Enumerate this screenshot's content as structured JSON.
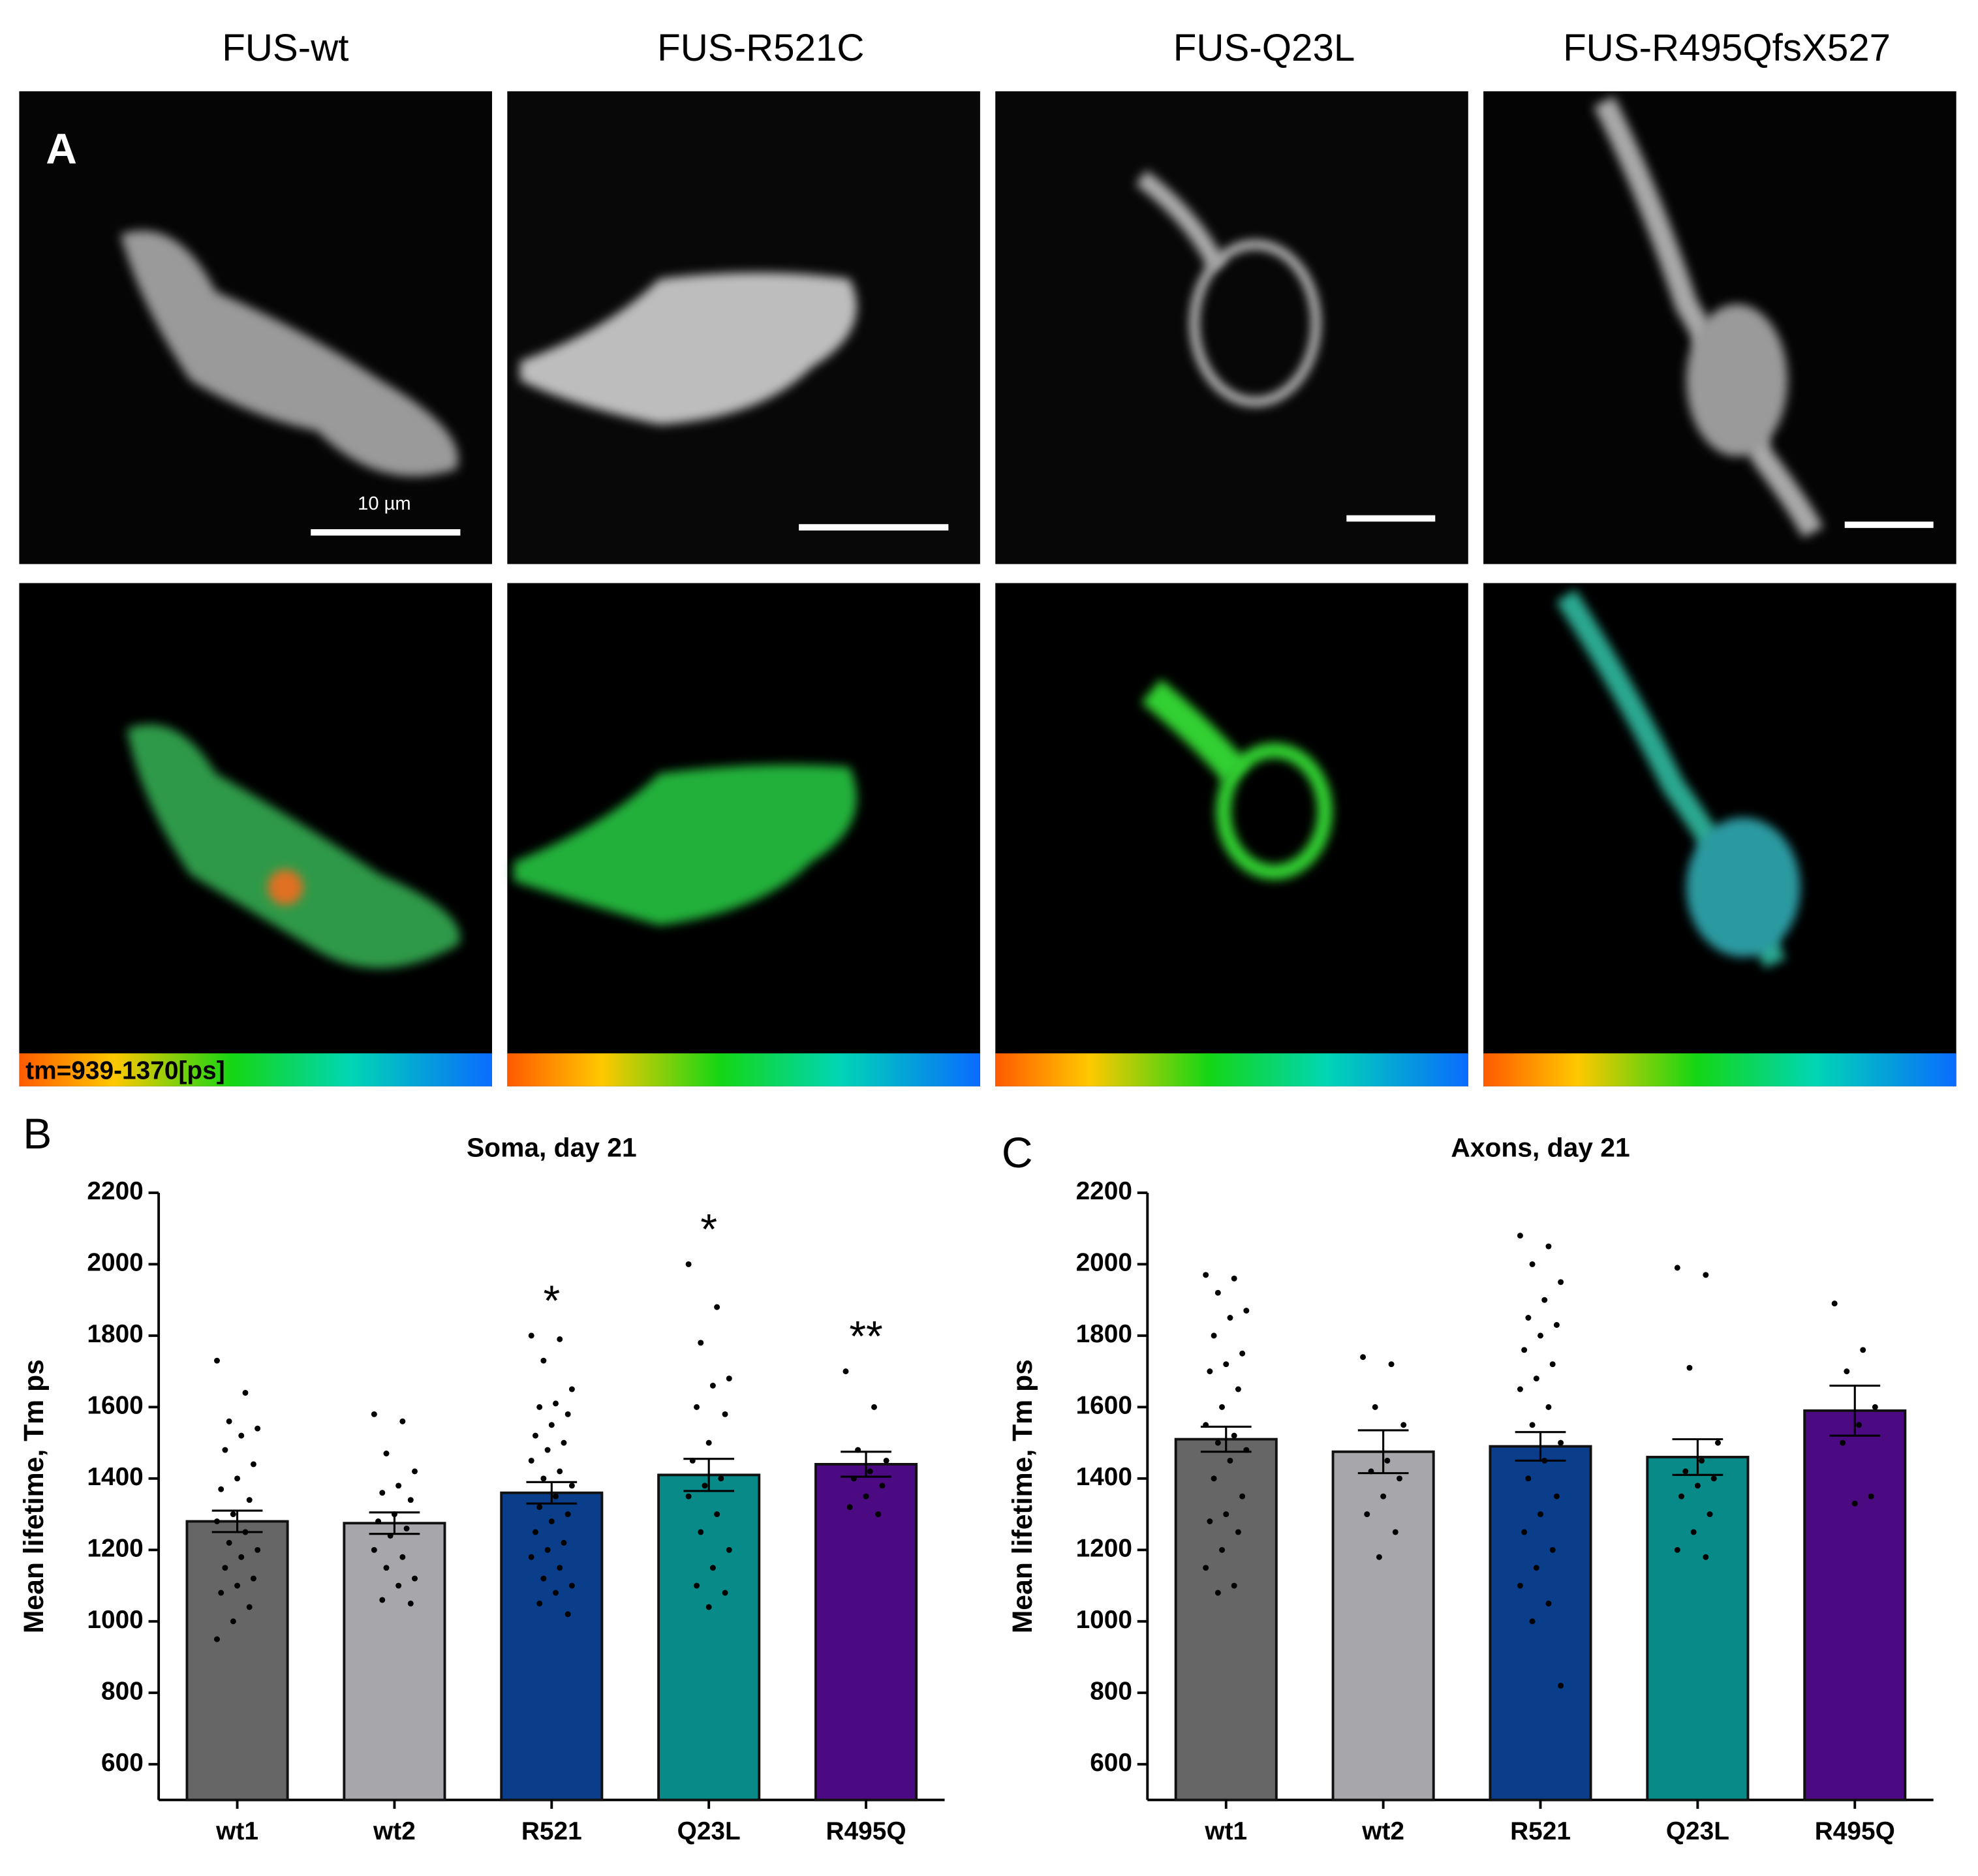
{
  "panel_labels": [
    "A",
    "B",
    "C"
  ],
  "column_titles": [
    "FUS-wt",
    "FUS-R521C",
    "FUS-Q23L",
    "FUS-R495QfsX527"
  ],
  "scale_label": "10 µm",
  "colorbar_label": "tm=939-1370[ps]",
  "chart_data": [
    {
      "type": "bar",
      "title": "Soma, day 21",
      "ylabel": "Mean lifetime, Tm ps",
      "categories": [
        "wt1",
        "wt2",
        "R521",
        "Q23L",
        "R495Q"
      ],
      "values": [
        1280,
        1275,
        1360,
        1410,
        1440
      ],
      "errors": [
        30,
        30,
        30,
        45,
        35
      ],
      "colors": [
        "#666666",
        "#a7a7ab",
        "#0b3e8a",
        "#088a88",
        "#4b0a82"
      ],
      "annotations": [
        null,
        null,
        "*",
        "*",
        "**"
      ],
      "points": [
        [
          1730,
          1640,
          1560,
          1540,
          1520,
          1480,
          1440,
          1400,
          1370,
          1340,
          1300,
          1280,
          1250,
          1220,
          1200,
          1180,
          1150,
          1120,
          1100,
          1080,
          1040,
          1000,
          950
        ],
        [
          1580,
          1560,
          1470,
          1420,
          1380,
          1360,
          1340,
          1300,
          1280,
          1260,
          1240,
          1200,
          1180,
          1150,
          1120,
          1100,
          1060,
          1050
        ],
        [
          1800,
          1790,
          1730,
          1650,
          1610,
          1600,
          1580,
          1550,
          1520,
          1500,
          1480,
          1450,
          1420,
          1400,
          1380,
          1350,
          1320,
          1300,
          1280,
          1250,
          1220,
          1200,
          1180,
          1150,
          1120,
          1100,
          1080,
          1050,
          1020
        ],
        [
          2000,
          1880,
          1780,
          1680,
          1660,
          1600,
          1580,
          1500,
          1450,
          1400,
          1380,
          1350,
          1300,
          1250,
          1200,
          1150,
          1100,
          1080,
          1040
        ],
        [
          1700,
          1600,
          1480,
          1450,
          1420,
          1400,
          1380,
          1350,
          1320,
          1300
        ]
      ],
      "ylim": [
        500,
        2200
      ],
      "yticks": [
        600,
        800,
        1000,
        1200,
        1400,
        1600,
        1800,
        2000,
        2200
      ]
    },
    {
      "type": "bar",
      "title": "Axons, day 21",
      "ylabel": "Mean lifetime, Tm ps",
      "categories": [
        "wt1",
        "wt2",
        "R521",
        "Q23L",
        "R495Q"
      ],
      "values": [
        1510,
        1475,
        1490,
        1460,
        1590
      ],
      "errors": [
        35,
        60,
        40,
        50,
        70
      ],
      "colors": [
        "#666666",
        "#a7a7ab",
        "#0b3e8a",
        "#088a88",
        "#4b0a82"
      ],
      "points": [
        [
          1970,
          1960,
          1920,
          1870,
          1850,
          1800,
          1750,
          1720,
          1700,
          1650,
          1600,
          1550,
          1520,
          1500,
          1480,
          1450,
          1400,
          1350,
          1300,
          1280,
          1250,
          1200,
          1150,
          1100,
          1080
        ],
        [
          1740,
          1720,
          1600,
          1550,
          1450,
          1420,
          1400,
          1350,
          1300,
          1250,
          1180
        ],
        [
          2080,
          2050,
          2000,
          1950,
          1900,
          1850,
          1830,
          1800,
          1760,
          1720,
          1680,
          1650,
          1600,
          1550,
          1500,
          1450,
          1400,
          1350,
          1300,
          1250,
          1200,
          1150,
          1100,
          1050,
          1000,
          820
        ],
        [
          1990,
          1970,
          1710,
          1500,
          1450,
          1420,
          1400,
          1380,
          1350,
          1300,
          1250,
          1200,
          1180
        ],
        [
          1890,
          1760,
          1700,
          1600,
          1550,
          1500,
          1350,
          1330
        ]
      ],
      "ylim": [
        500,
        2200
      ],
      "yticks": [
        600,
        800,
        1000,
        1200,
        1400,
        1600,
        1800,
        2000,
        2200
      ]
    }
  ]
}
